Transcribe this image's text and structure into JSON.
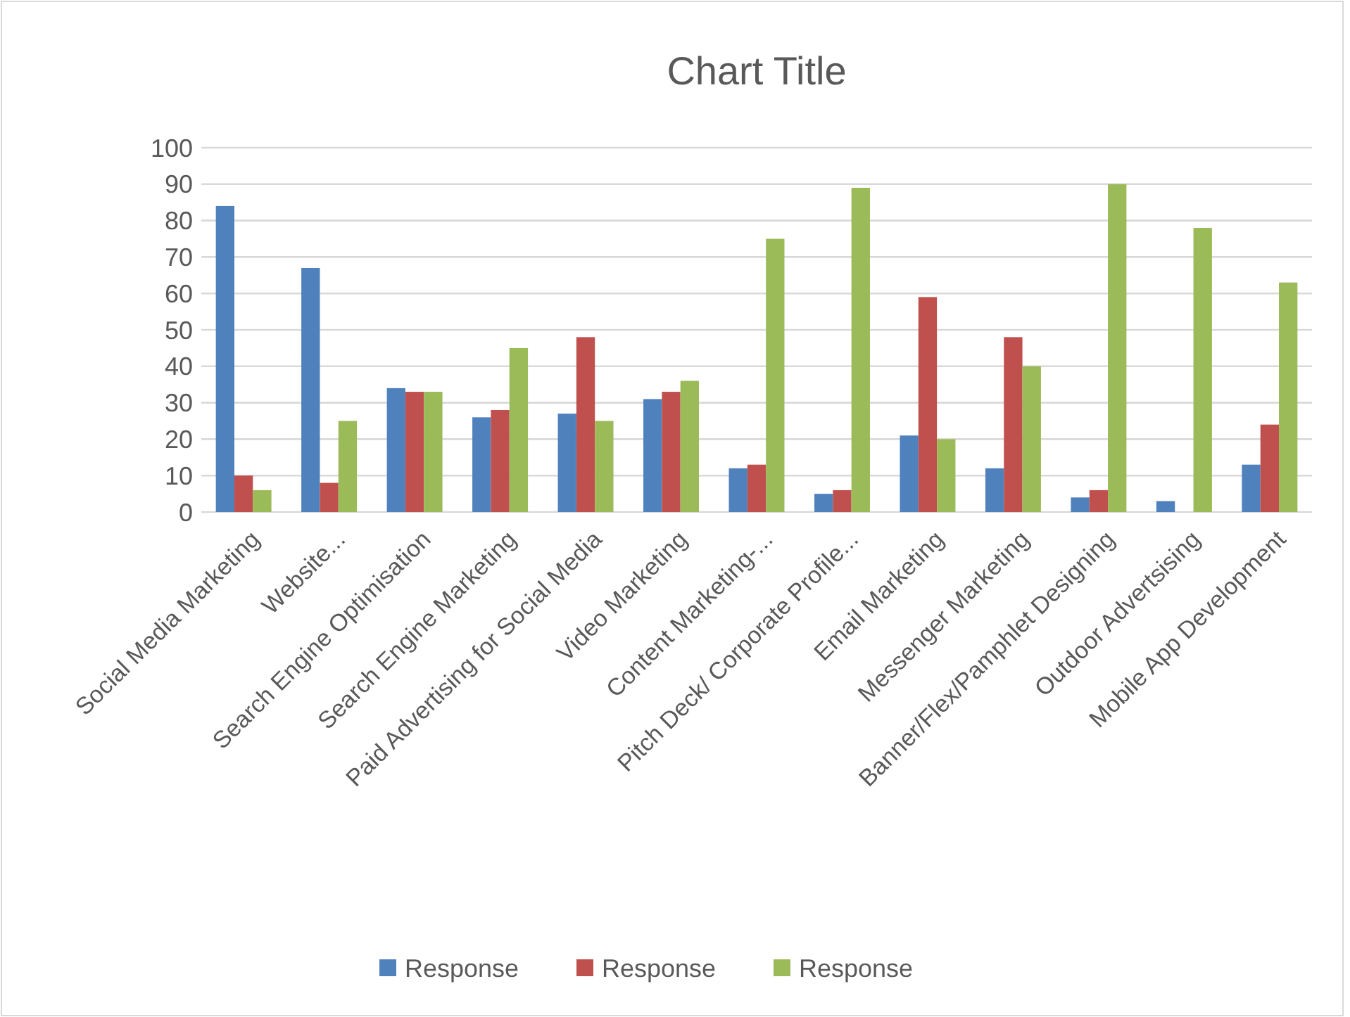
{
  "chart_data": {
    "type": "bar",
    "title": "Chart Title",
    "categories": [
      "Social Media Marketing",
      "Website...",
      "Search Engine Optimisation",
      "Search Engine Marketing",
      "Paid Advertising for Social Media",
      "Video Marketing",
      "Content Marketing-...",
      "Pitch Deck/ Corporate Profile...",
      "Email Marketing",
      "Messenger Marketing",
      "Banner/Flex/Pamphlet Designing",
      "Outdoor Advertsising",
      "Mobile App Development"
    ],
    "series": [
      {
        "name": "Response",
        "color": "#4f81bd",
        "values": [
          84,
          67,
          34,
          26,
          27,
          31,
          12,
          5,
          21,
          12,
          4,
          3,
          13
        ]
      },
      {
        "name": "Response",
        "color": "#c0504d",
        "values": [
          10,
          8,
          33,
          28,
          48,
          33,
          13,
          6,
          59,
          48,
          6,
          0,
          24
        ]
      },
      {
        "name": "Response",
        "color": "#9bbb59",
        "values": [
          6,
          25,
          33,
          45,
          25,
          36,
          75,
          89,
          20,
          40,
          90,
          78,
          63
        ]
      }
    ],
    "ylim": [
      0,
      100
    ],
    "yticks": [
      0,
      10,
      20,
      30,
      40,
      50,
      60,
      70,
      80,
      90,
      100
    ],
    "grid": "y",
    "legend": "bottom"
  }
}
